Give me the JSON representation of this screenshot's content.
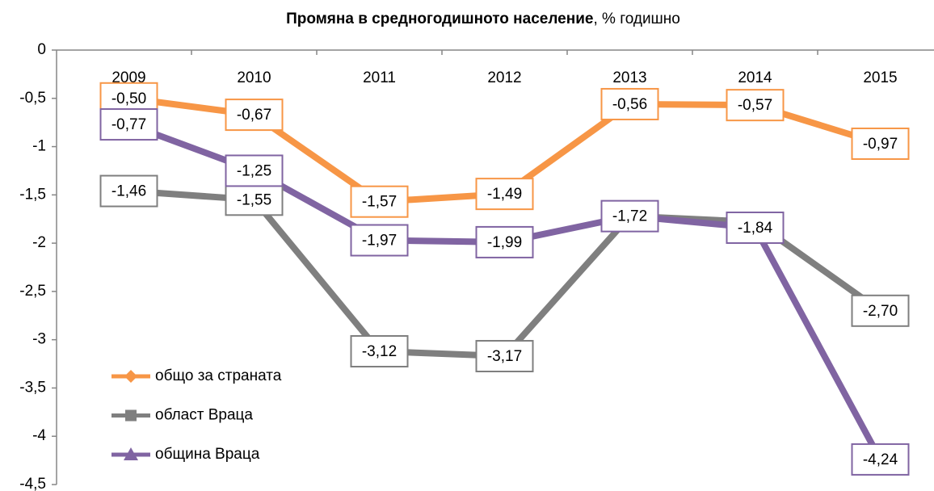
{
  "chart_data": {
    "type": "line",
    "title": [
      "Промяна в средногодишното население",
      ", % годишно"
    ],
    "categories": [
      "2009",
      "2010",
      "2011",
      "2012",
      "2013",
      "2014",
      "2015"
    ],
    "series": [
      {
        "name": "общо за страната",
        "color": "#f79646",
        "marker": "diamond",
        "values": [
          -0.5,
          -0.67,
          -1.57,
          -1.49,
          -0.56,
          -0.57,
          -0.97
        ],
        "value_labels": [
          "-0,50",
          "-0,67",
          "-1,57",
          "-1,49",
          "-0,56",
          "-0,57",
          "-0,97"
        ]
      },
      {
        "name": "област Враца",
        "color": "#7f7f7f",
        "marker": "square",
        "values": [
          -1.46,
          -1.55,
          -3.12,
          -3.17,
          -1.72,
          -1.78,
          -2.7
        ],
        "value_labels": [
          "-1,46",
          "-1,55",
          "-3,12",
          "-3,17",
          null,
          null,
          "-2,70"
        ]
      },
      {
        "name": "община Враца",
        "color": "#8064a2",
        "marker": "triangle",
        "values": [
          -0.77,
          -1.25,
          -1.97,
          -1.99,
          -1.72,
          -1.84,
          -4.24
        ],
        "value_labels": [
          "-0,77",
          "-1,25",
          "-1,97",
          "-1,99",
          "-1,72",
          "-1,84",
          "-4,24"
        ]
      }
    ],
    "ylim": [
      -4.5,
      0
    ],
    "yticks": [
      0,
      {
        "value": -0.5,
        "label": "-0,5"
      },
      -1,
      {
        "value": -1.5,
        "label": "-1,5"
      },
      -2,
      {
        "value": -2.5,
        "label": "-2,5"
      },
      -3,
      {
        "value": -3.5,
        "label": "-3,5"
      },
      -4,
      {
        "value": -4.5,
        "label": "-4,5"
      }
    ],
    "legend": "bottom-left"
  }
}
